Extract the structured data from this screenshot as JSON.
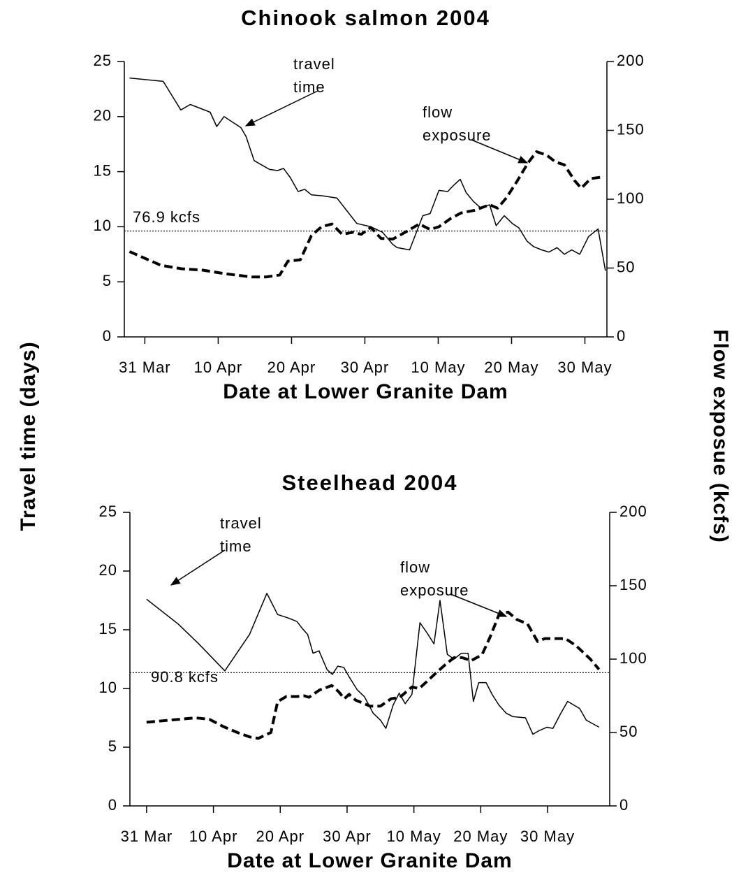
{
  "ylabel": "Travel time (days)",
  "y2label": "Flow exposue (kcfs)",
  "chart_data": [
    {
      "type": "line",
      "title": "Chinook salmon 2004",
      "xlabel": "Date at Lower Granite Dam",
      "xlim": [
        -2.8,
        63
      ],
      "ylim": [
        0,
        25
      ],
      "y2lim": [
        0,
        200
      ],
      "xticks": [
        {
          "value": 0,
          "label": "31 Mar"
        },
        {
          "value": 10,
          "label": "10 Apr"
        },
        {
          "value": 20,
          "label": "20 Apr"
        },
        {
          "value": 30,
          "label": "30 Apr"
        },
        {
          "value": 40,
          "label": "10 May"
        },
        {
          "value": 50,
          "label": "20 May"
        },
        {
          "value": 60,
          "label": "30 May"
        }
      ],
      "yticks": [
        0,
        5,
        10,
        15,
        20,
        25
      ],
      "y2ticks": [
        0,
        50,
        100,
        150,
        200
      ],
      "reference_line": {
        "value": 76.9,
        "axis": "y2",
        "label": "76.9 kcfs"
      },
      "series": [
        {
          "label": [
            "travel",
            "time"
          ],
          "color": "#000000",
          "dashed": false,
          "axis": "y",
          "x": [
            -2.1,
            2.5,
            4.9,
            6.2,
            8.9,
            9.8,
            10.8,
            13.1,
            13.8,
            14.9,
            17,
            18.1,
            18.9,
            19.8,
            20.9,
            21.8,
            22.7,
            24.3,
            26.2,
            28.9,
            30.8,
            32.4,
            33.8,
            34.4,
            36.1,
            37.9,
            38.9,
            40.1,
            41.3,
            42.0,
            43.0,
            43.8,
            44.8,
            45.8,
            47.0,
            47.9,
            49.0,
            50.1,
            51.0,
            52.1,
            53.0,
            54.1,
            55.1,
            56.2,
            57.2,
            58.2,
            59.3,
            60.5,
            61.8,
            62.8
          ],
          "values": [
            23.5,
            23.2,
            20.6,
            21.1,
            20.4,
            19.1,
            20.0,
            19.0,
            18.2,
            16.0,
            15.2,
            15.1,
            15.3,
            14.5,
            13.2,
            13.4,
            12.9,
            12.8,
            12.6,
            10.3,
            10.0,
            9.5,
            8.4,
            8.1,
            7.9,
            11.0,
            11.2,
            13.3,
            13.2,
            13.7,
            14.3,
            13.1,
            12.3,
            11.7,
            12.0,
            10.1,
            11.0,
            10.3,
            9.9,
            8.7,
            8.2,
            7.9,
            7.7,
            8.1,
            7.5,
            7.9,
            7.5,
            9.1,
            9.8,
            6.0
          ]
        },
        {
          "label": [
            "flow",
            "exposure"
          ],
          "color": "#000000",
          "dashed": true,
          "axis": "y2",
          "x": [
            -2.1,
            2.2,
            5.0,
            7.9,
            10.8,
            14.6,
            16.5,
            18.4,
            19.5,
            21.2,
            22.7,
            24.1,
            25.5,
            26.9,
            28.4,
            29.5,
            30.8,
            32.2,
            33.8,
            35.5,
            37.4,
            38.9,
            40.1,
            41.7,
            43.1,
            45.0,
            47.0,
            48.1,
            49.3,
            50.8,
            52.2,
            53.4,
            54.8,
            56.0,
            57.2,
            58.6,
            59.5,
            60.8,
            62.2
          ],
          "values": [
            62,
            52,
            49.5,
            48.5,
            46,
            43.5,
            43.5,
            45,
            55,
            56,
            73.5,
            80,
            82,
            74.5,
            76,
            74.5,
            79.5,
            71.5,
            71,
            76,
            82,
            78,
            80,
            86,
            90,
            92,
            96,
            93.5,
            101,
            113.5,
            126,
            134.5,
            132,
            127,
            125,
            113.5,
            108,
            115,
            116
          ]
        }
      ]
    },
    {
      "type": "line",
      "title": "Steelhead 2004",
      "xlabel": "Date at Lower Granite Dam",
      "xlim": [
        -2.5,
        69.3
      ],
      "ylim": [
        0,
        25
      ],
      "y2lim": [
        0,
        200
      ],
      "xticks": [
        {
          "value": 0,
          "label": "31 Mar"
        },
        {
          "value": 10,
          "label": "10 Apr"
        },
        {
          "value": 20,
          "label": "20 Apr"
        },
        {
          "value": 30,
          "label": "30 Apr"
        },
        {
          "value": 40,
          "label": "10 May"
        },
        {
          "value": 50,
          "label": "20 May"
        },
        {
          "value": 60,
          "label": "30 May"
        }
      ],
      "yticks": [
        0,
        5,
        10,
        15,
        20,
        25
      ],
      "y2ticks": [
        0,
        50,
        100,
        150,
        200
      ],
      "reference_line": {
        "value": 90.8,
        "axis": "y2",
        "label": "90.8 kcfs"
      },
      "series": [
        {
          "label": [
            "travel",
            "time"
          ],
          "color": "#000000",
          "dashed": false,
          "axis": "y",
          "x": [
            0,
            4.7,
            7.8,
            11.7,
            15.4,
            18.0,
            19.6,
            21.2,
            22.5,
            23.3,
            24.1,
            24.9,
            25.8,
            27.0,
            27.8,
            28.6,
            29.5,
            30.3,
            31.5,
            32.6,
            33.9,
            35.0,
            35.8,
            36.9,
            37.8,
            38.7,
            39.7,
            40.9,
            42.0,
            43.0,
            43.9,
            45.0,
            46.0,
            47.1,
            48.1,
            48.9,
            49.7,
            50.8,
            51.7,
            52.7,
            53.8,
            54.8,
            56.7,
            57.8,
            58.7,
            59.9,
            60.8,
            61.9,
            63.0,
            63.9,
            64.8,
            65.8,
            67.7
          ],
          "values": [
            17.6,
            15.5,
            13.8,
            11.5,
            14.6,
            18.1,
            16.3,
            16.0,
            15.7,
            15.1,
            14.6,
            13.0,
            13.2,
            11.6,
            11.2,
            11.9,
            11.8,
            11.0,
            9.9,
            9.3,
            7.9,
            7.3,
            6.6,
            8.6,
            9.6,
            8.7,
            9.5,
            15.6,
            14.7,
            13.8,
            17.5,
            12.9,
            12.5,
            13.0,
            13.0,
            8.9,
            10.5,
            10.5,
            9.5,
            8.6,
            7.9,
            7.6,
            7.5,
            6.1,
            6.4,
            6.7,
            6.6,
            7.8,
            8.9,
            8.6,
            8.3,
            7.3,
            6.7
          ]
        },
        {
          "label": [
            "flow",
            "exposure"
          ],
          "color": "#000000",
          "dashed": true,
          "axis": "y2",
          "x": [
            0,
            7.3,
            9.4,
            11.5,
            13.6,
            15.4,
            16.7,
            18.6,
            19.6,
            20.9,
            22.5,
            23.6,
            24.3,
            25.9,
            27.7,
            28.7,
            29.6,
            30.3,
            31.3,
            32.4,
            33.4,
            35.0,
            36.6,
            37.9,
            39.7,
            40.8,
            42.0,
            43.4,
            44.9,
            46.0,
            47.2,
            48.6,
            50.2,
            51.4,
            52.8,
            54.1,
            55.4,
            57.0,
            58.5,
            59.6,
            61.1,
            62.7,
            64.3,
            66.4,
            67.7
          ],
          "values": [
            57,
            60,
            59,
            54,
            50,
            47,
            46,
            50,
            71,
            74.5,
            74.5,
            75,
            74,
            79,
            82,
            78,
            73,
            76,
            72,
            70,
            68,
            68,
            73,
            74,
            81,
            80,
            85,
            91,
            97,
            101,
            101,
            99,
            103,
            115,
            131,
            132,
            127,
            124,
            112,
            114,
            114,
            114,
            109,
            100,
            93
          ]
        }
      ]
    }
  ]
}
